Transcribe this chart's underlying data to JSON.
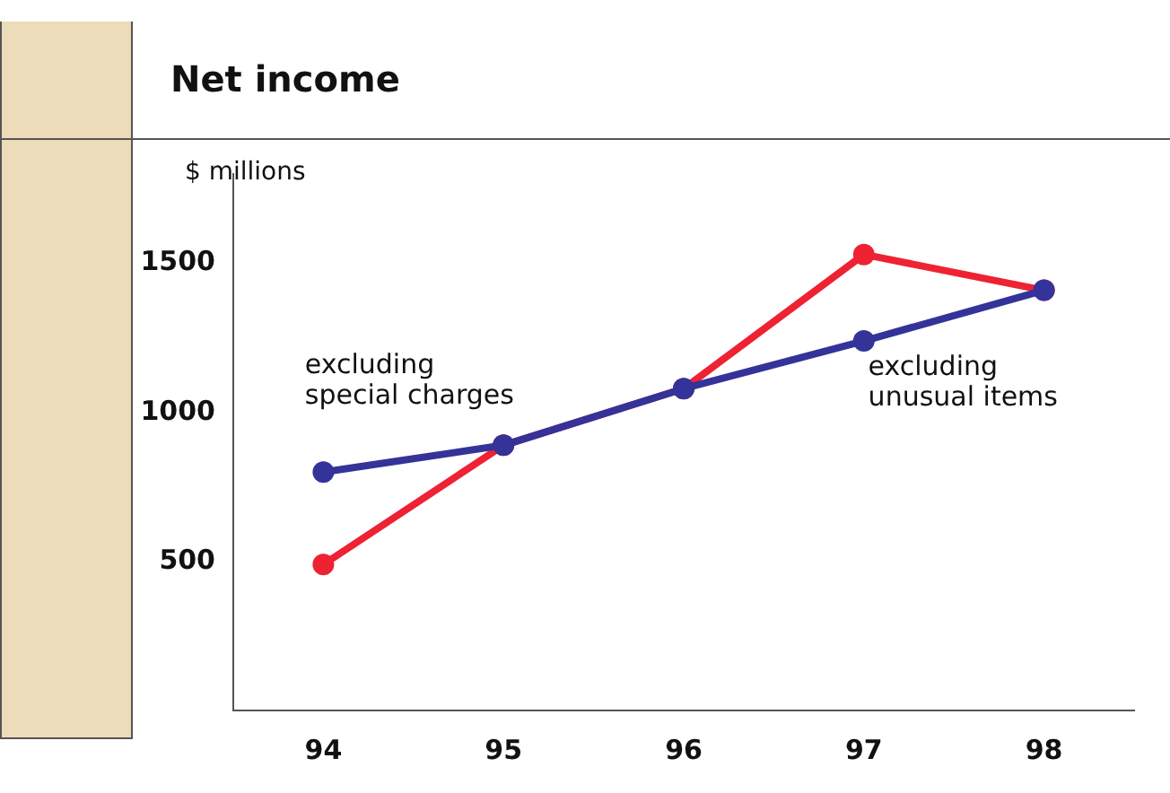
{
  "chart_data": {
    "type": "line",
    "title": "Net income",
    "ylabel": "$ millions",
    "categories": [
      "94",
      "95",
      "96",
      "97",
      "98"
    ],
    "series": [
      {
        "color": "#333399",
        "values": [
          800,
          890,
          1080,
          1240,
          1410
        ]
      },
      {
        "color": "#ee2233",
        "values": [
          490,
          890,
          1080,
          1530,
          1410
        ]
      }
    ],
    "ylim": [
      0,
      1800
    ],
    "yticks": [
      500,
      1000,
      1500
    ],
    "grid": false,
    "legend": false,
    "marker": "circle",
    "line_style": "solid",
    "annotations": [
      "excluding\nspecial charges",
      "excluding\nunusual items"
    ]
  }
}
